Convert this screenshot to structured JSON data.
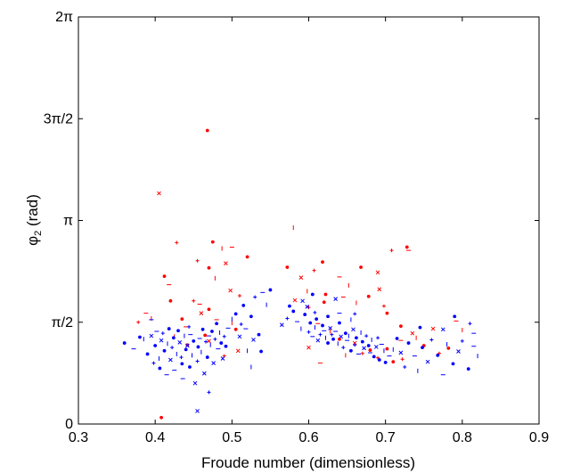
{
  "chart_data": {
    "type": "scatter",
    "title": "",
    "xlabel": "Froude number (dimensionless)",
    "ylabel_main": "φ",
    "ylabel_sub": "2",
    "ylabel_unit": " (rad)",
    "xlim": [
      0.3,
      0.9
    ],
    "ylim": [
      0,
      6.2832
    ],
    "x_ticks": [
      {
        "value": 0.3,
        "label": "0.3"
      },
      {
        "value": 0.4,
        "label": "0.4"
      },
      {
        "value": 0.5,
        "label": "0.5"
      },
      {
        "value": 0.6,
        "label": "0.6"
      },
      {
        "value": 0.7,
        "label": "0.7"
      },
      {
        "value": 0.8,
        "label": "0.8"
      },
      {
        "value": 0.9,
        "label": "0.9"
      }
    ],
    "y_ticks": [
      {
        "value": 0,
        "label": "0"
      },
      {
        "value": 1.5708,
        "label": "π/2"
      },
      {
        "value": 3.1416,
        "label": "π"
      },
      {
        "value": 4.7124,
        "label": "3π/2"
      },
      {
        "value": 6.2832,
        "label": "2π"
      }
    ],
    "grid": false,
    "series": [
      {
        "color": "#ff0000",
        "points": [
          [
            0.468,
            4.53
          ],
          [
            0.405,
            3.56
          ],
          [
            0.428,
            2.8
          ],
          [
            0.475,
            2.81
          ],
          [
            0.5,
            2.73
          ],
          [
            0.487,
            2.71
          ],
          [
            0.52,
            2.58
          ],
          [
            0.492,
            2.48
          ],
          [
            0.455,
            2.52
          ],
          [
            0.412,
            2.28
          ],
          [
            0.418,
            2.15
          ],
          [
            0.478,
            2.25
          ],
          [
            0.47,
            2.41
          ],
          [
            0.498,
            2.06
          ],
          [
            0.51,
            1.98
          ],
          [
            0.42,
            1.9
          ],
          [
            0.388,
            1.71
          ],
          [
            0.395,
            1.63
          ],
          [
            0.435,
            1.62
          ],
          [
            0.46,
            1.71
          ],
          [
            0.45,
            1.9
          ],
          [
            0.47,
            1.77
          ],
          [
            0.48,
            1.61
          ],
          [
            0.5,
            1.56
          ],
          [
            0.465,
            1.37
          ],
          [
            0.47,
            1.28
          ],
          [
            0.49,
            1.05
          ],
          [
            0.505,
            1.46
          ],
          [
            0.44,
            1.5
          ],
          [
            0.425,
            1.35
          ],
          [
            0.442,
            1.22
          ],
          [
            0.508,
            1.13
          ],
          [
            0.378,
            1.57
          ],
          [
            0.408,
            0.1
          ],
          [
            0.458,
            1.85
          ],
          [
            0.58,
            3.03
          ],
          [
            0.572,
            2.42
          ],
          [
            0.59,
            2.26
          ],
          [
            0.607,
            2.37
          ],
          [
            0.618,
            2.5
          ],
          [
            0.64,
            2.27
          ],
          [
            0.652,
            2.14
          ],
          [
            0.668,
            2.42
          ],
          [
            0.69,
            2.34
          ],
          [
            0.708,
            2.68
          ],
          [
            0.728,
            2.73
          ],
          [
            0.73,
            2.68
          ],
          [
            0.598,
            2.05
          ],
          [
            0.622,
            2.0
          ],
          [
            0.582,
            1.91
          ],
          [
            0.6,
            1.8
          ],
          [
            0.62,
            1.88
          ],
          [
            0.645,
            1.96
          ],
          [
            0.662,
            1.87
          ],
          [
            0.678,
            1.97
          ],
          [
            0.692,
            2.08
          ],
          [
            0.698,
            1.82
          ],
          [
            0.702,
            1.71
          ],
          [
            0.612,
            1.55
          ],
          [
            0.628,
            1.43
          ],
          [
            0.64,
            1.31
          ],
          [
            0.66,
            1.25
          ],
          [
            0.67,
            1.09
          ],
          [
            0.702,
            1.16
          ],
          [
            0.72,
            1.29
          ],
          [
            0.74,
            1.33
          ],
          [
            0.75,
            1.21
          ],
          [
            0.762,
            1.47
          ],
          [
            0.77,
            1.09
          ],
          [
            0.782,
            1.17
          ],
          [
            0.792,
            1.59
          ],
          [
            0.8,
            1.45
          ],
          [
            0.72,
            1.51
          ],
          [
            0.735,
            1.4
          ],
          [
            0.69,
            1.02
          ],
          [
            0.71,
            0.96
          ],
          [
            0.615,
            0.94
          ],
          [
            0.648,
            1.06
          ],
          [
            0.68,
            1.14
          ],
          [
            0.6,
            1.18
          ],
          [
            0.722,
            1.0
          ]
        ]
      },
      {
        "color": "#0000ff",
        "points": [
          [
            0.36,
            1.25
          ],
          [
            0.372,
            1.16
          ],
          [
            0.385,
            1.31
          ],
          [
            0.39,
            1.08
          ],
          [
            0.395,
            1.36
          ],
          [
            0.398,
            0.94
          ],
          [
            0.4,
            1.21
          ],
          [
            0.402,
            1.43
          ],
          [
            0.405,
            1.01
          ],
          [
            0.406,
            0.86
          ],
          [
            0.408,
            1.29
          ],
          [
            0.41,
            1.4
          ],
          [
            0.412,
            1.13
          ],
          [
            0.415,
            0.76
          ],
          [
            0.416,
            1.24
          ],
          [
            0.418,
            1.47
          ],
          [
            0.42,
            0.99
          ],
          [
            0.422,
            1.18
          ],
          [
            0.424,
            1.33
          ],
          [
            0.425,
            0.83
          ],
          [
            0.428,
            1.08
          ],
          [
            0.43,
            1.44
          ],
          [
            0.432,
            1.26
          ],
          [
            0.434,
            1.03
          ],
          [
            0.435,
            0.93
          ],
          [
            0.436,
            0.7
          ],
          [
            0.438,
            1.36
          ],
          [
            0.44,
            1.15
          ],
          [
            0.442,
            1.21
          ],
          [
            0.444,
            1.5
          ],
          [
            0.445,
            0.88
          ],
          [
            0.446,
            1.38
          ],
          [
            0.448,
            1.06
          ],
          [
            0.45,
            1.28
          ],
          [
            0.452,
            0.63
          ],
          [
            0.455,
            0.97
          ],
          [
            0.456,
            1.19
          ],
          [
            0.458,
            1.32
          ],
          [
            0.46,
            1.11
          ],
          [
            0.462,
            1.46
          ],
          [
            0.464,
            0.78
          ],
          [
            0.466,
            1.27
          ],
          [
            0.468,
            1.03
          ],
          [
            0.47,
            1.36
          ],
          [
            0.472,
            1.22
          ],
          [
            0.474,
            1.43
          ],
          [
            0.476,
            0.94
          ],
          [
            0.478,
            1.31
          ],
          [
            0.48,
            1.55
          ],
          [
            0.482,
            1.16
          ],
          [
            0.484,
            1.41
          ],
          [
            0.486,
            1.25
          ],
          [
            0.488,
            1.01
          ],
          [
            0.49,
            1.35
          ],
          [
            0.492,
            1.2
          ],
          [
            0.495,
            1.48
          ],
          [
            0.5,
            1.62
          ],
          [
            0.505,
            1.7
          ],
          [
            0.51,
            1.35
          ],
          [
            0.512,
            1.54
          ],
          [
            0.515,
            1.83
          ],
          [
            0.518,
            1.47
          ],
          [
            0.52,
            1.13
          ],
          [
            0.525,
            1.66
          ],
          [
            0.528,
            1.3
          ],
          [
            0.53,
            1.96
          ],
          [
            0.535,
            1.38
          ],
          [
            0.54,
            2.03
          ],
          [
            0.545,
            1.84
          ],
          [
            0.55,
            2.07
          ],
          [
            0.455,
            0.2
          ],
          [
            0.47,
            0.49
          ],
          [
            0.38,
            1.34
          ],
          [
            0.395,
            1.61
          ],
          [
            0.525,
            0.88
          ],
          [
            0.538,
            1.12
          ],
          [
            0.565,
            1.53
          ],
          [
            0.572,
            1.63
          ],
          [
            0.58,
            1.74
          ],
          [
            0.585,
            1.58
          ],
          [
            0.59,
            1.47
          ],
          [
            0.595,
            1.69
          ],
          [
            0.598,
            1.81
          ],
          [
            0.6,
            1.42
          ],
          [
            0.602,
            1.56
          ],
          [
            0.605,
            1.35
          ],
          [
            0.608,
            1.49
          ],
          [
            0.61,
            1.62
          ],
          [
            0.612,
            1.29
          ],
          [
            0.615,
            1.38
          ],
          [
            0.618,
            1.52
          ],
          [
            0.62,
            1.44
          ],
          [
            0.622,
            1.33
          ],
          [
            0.625,
            1.25
          ],
          [
            0.628,
            1.48
          ],
          [
            0.63,
            1.38
          ],
          [
            0.632,
            1.31
          ],
          [
            0.635,
            1.43
          ],
          [
            0.638,
            1.24
          ],
          [
            0.64,
            1.56
          ],
          [
            0.642,
            1.35
          ],
          [
            0.645,
            1.18
          ],
          [
            0.648,
            1.4
          ],
          [
            0.65,
            1.29
          ],
          [
            0.652,
            1.36
          ],
          [
            0.655,
            1.13
          ],
          [
            0.658,
            1.46
          ],
          [
            0.66,
            1.22
          ],
          [
            0.662,
            1.33
          ],
          [
            0.665,
            1.08
          ],
          [
            0.668,
            1.41
          ],
          [
            0.67,
            1.27
          ],
          [
            0.672,
            1.17
          ],
          [
            0.675,
            1.36
          ],
          [
            0.678,
            1.21
          ],
          [
            0.68,
            1.1
          ],
          [
            0.682,
            1.3
          ],
          [
            0.685,
            1.04
          ],
          [
            0.688,
            1.19
          ],
          [
            0.69,
            1.33
          ],
          [
            0.692,
            0.99
          ],
          [
            0.695,
            1.23
          ],
          [
            0.698,
            1.13
          ],
          [
            0.575,
            1.82
          ],
          [
            0.592,
            1.9
          ],
          [
            0.608,
            1.72
          ],
          [
            0.625,
            1.66
          ],
          [
            0.64,
            1.71
          ],
          [
            0.655,
            1.61
          ],
          [
            0.605,
            2.0
          ],
          [
            0.635,
            1.93
          ],
          [
            0.66,
            1.7
          ],
          [
            0.7,
            0.95
          ],
          [
            0.705,
            1.05
          ],
          [
            0.71,
            1.15
          ],
          [
            0.715,
            1.32
          ],
          [
            0.72,
            1.1
          ],
          [
            0.725,
            0.88
          ],
          [
            0.73,
            1.25
          ],
          [
            0.738,
            1.05
          ],
          [
            0.742,
            0.82
          ],
          [
            0.748,
            1.18
          ],
          [
            0.755,
            0.96
          ],
          [
            0.76,
            1.3
          ],
          [
            0.768,
            1.06
          ],
          [
            0.775,
            0.76
          ],
          [
            0.78,
            1.23
          ],
          [
            0.788,
            0.93
          ],
          [
            0.795,
            1.12
          ],
          [
            0.8,
            1.28
          ],
          [
            0.808,
            0.85
          ],
          [
            0.815,
            1.2
          ],
          [
            0.82,
            1.05
          ],
          [
            0.79,
            1.66
          ],
          [
            0.775,
            1.46
          ],
          [
            0.81,
            1.55
          ],
          [
            0.745,
            1.49
          ],
          [
            0.815,
            1.4
          ]
        ]
      }
    ]
  }
}
